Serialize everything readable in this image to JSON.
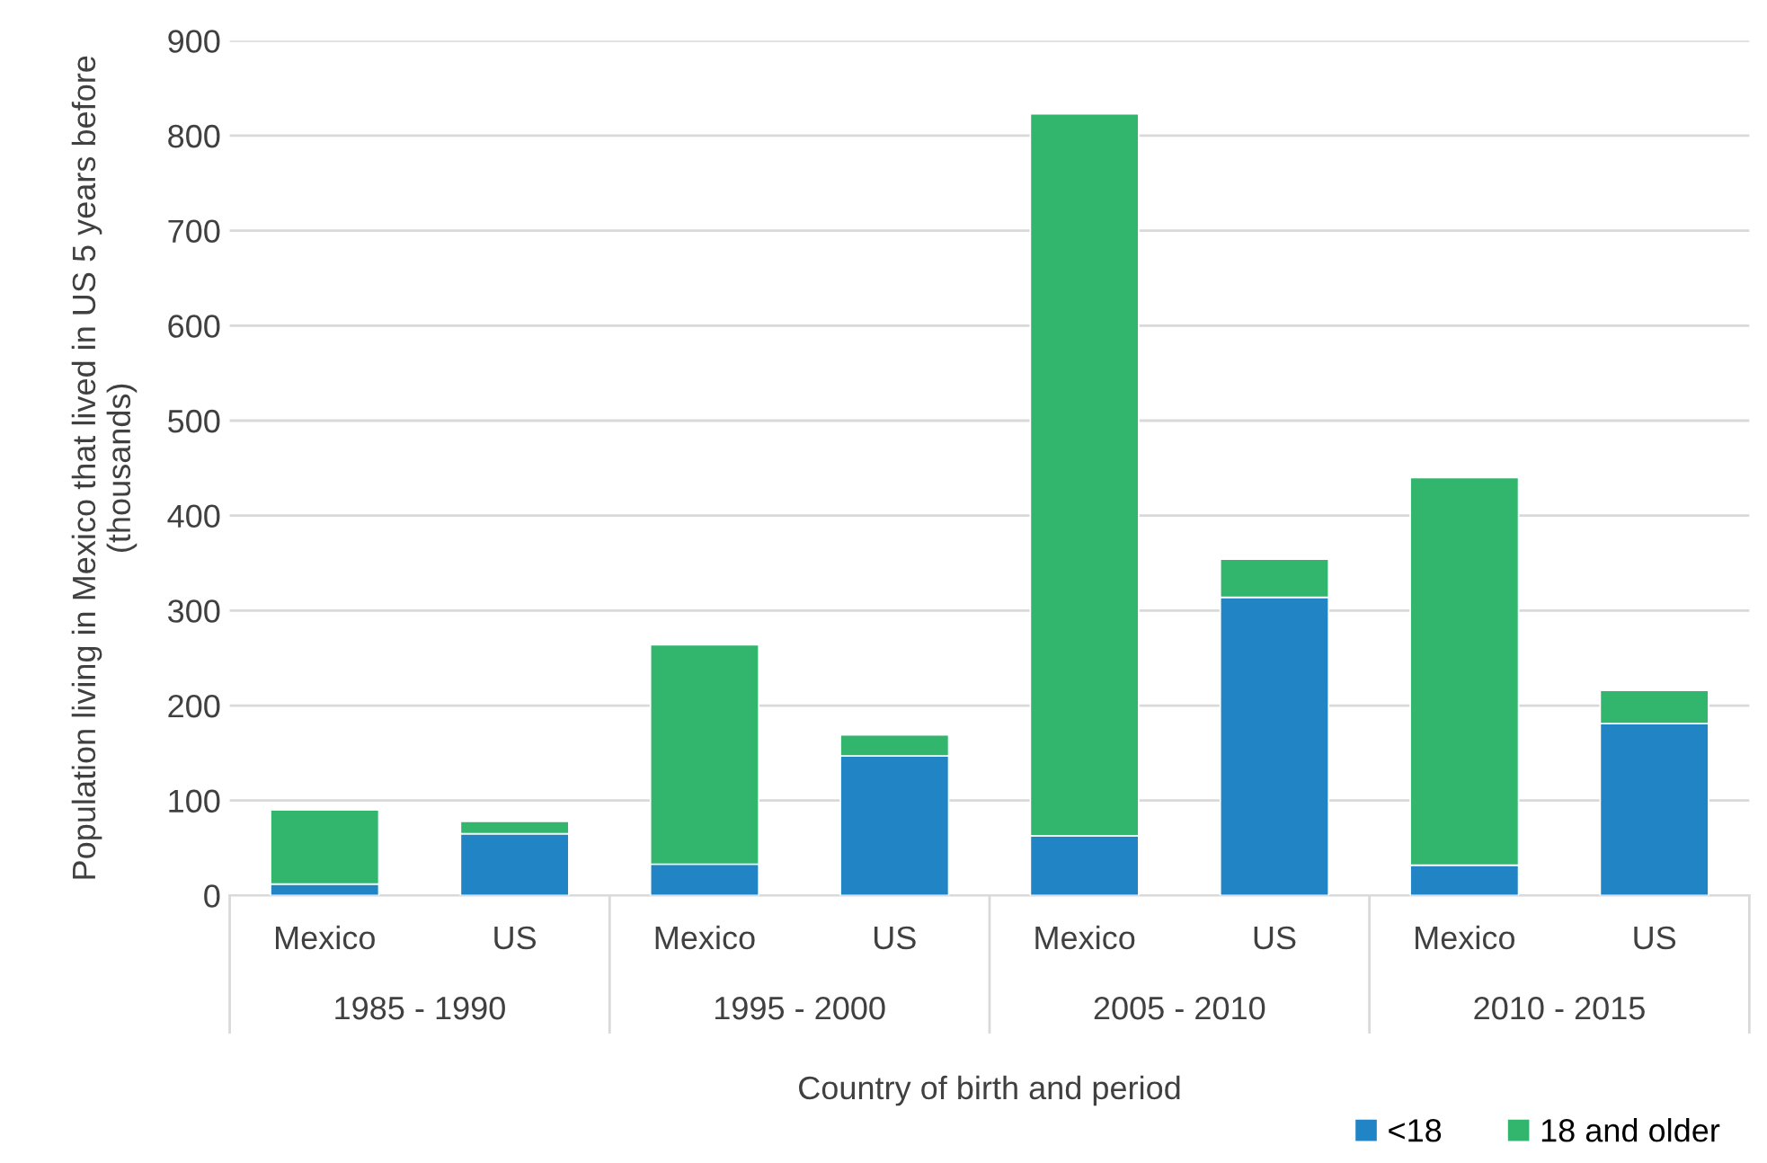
{
  "chart_data": {
    "type": "bar",
    "stacked": true,
    "categories": [
      "Mexico",
      "US",
      "Mexico",
      "US",
      "Mexico",
      "US",
      "Mexico",
      "US"
    ],
    "annotations": [
      "1985 - 1990",
      "1995 - 2000",
      "2005 - 2010",
      "2010 - 2015"
    ],
    "xlabel": "Country of birth and period",
    "ylabel": "Population living in Mexico that lived in US 5 years before\n(thousands)",
    "series": [
      {
        "name": "<18",
        "color": "#2185c5",
        "values": [
          12,
          65,
          33,
          147,
          63,
          314,
          32,
          181
        ]
      },
      {
        "name": "18 and older",
        "color": "#32b66d",
        "values": [
          78,
          13,
          231,
          22,
          760,
          40,
          408,
          35
        ]
      }
    ],
    "ylim": [
      0,
      900
    ],
    "yticks": [
      0,
      100,
      200,
      300,
      400,
      500,
      600,
      700,
      800,
      900
    ],
    "grid": "y",
    "legend": "bottom right"
  }
}
